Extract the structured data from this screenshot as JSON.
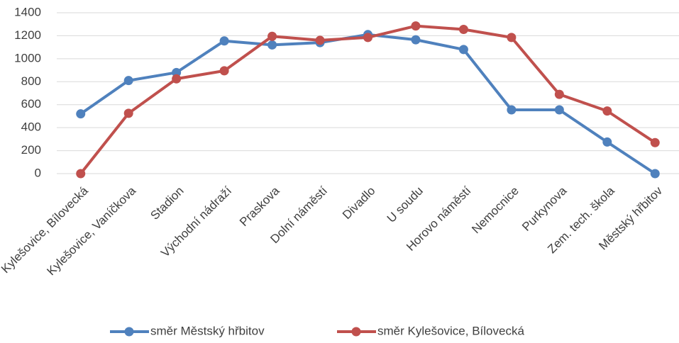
{
  "chart_data": {
    "type": "line",
    "categories": [
      "Kylešovice, Bílovecká",
      "Kylešovice, Vaníčkova",
      "Stadion",
      "Východní nádraží",
      "Praskova",
      "Dolní náměstí",
      "Divadlo",
      "U soudu",
      "Horovo náměstí",
      "Nemocnice",
      "Purkynova",
      "Zem. tech. škola",
      "Městský hřbitov"
    ],
    "series": [
      {
        "name": "směr Městský hřbitov",
        "color": "#4f81bd",
        "values": [
          520,
          810,
          880,
          1155,
          1120,
          1140,
          1210,
          1165,
          1080,
          555,
          555,
          275,
          0
        ]
      },
      {
        "name": "směr Kylešovice, Bílovecká",
        "color": "#c0504d",
        "values": [
          0,
          525,
          825,
          895,
          1195,
          1160,
          1185,
          1285,
          1255,
          1185,
          690,
          545,
          270
        ]
      }
    ],
    "ylim": [
      0,
      1400
    ],
    "yticks": [
      0,
      200,
      400,
      600,
      800,
      1000,
      1200,
      1400
    ],
    "grid": true,
    "legend": "bottom"
  }
}
